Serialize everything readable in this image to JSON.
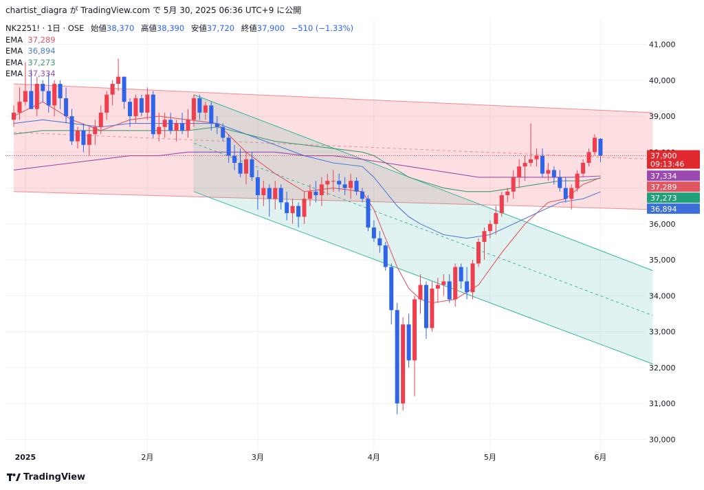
{
  "header": {
    "text": "chartist_diagra が TradingView.com で 5月 30, 2025 06:36 UTC+9 に公開"
  },
  "legend": {
    "symbol": "NK2251! · 1日 · OSE",
    "open_label": "始値",
    "open": "38,370",
    "high_label": "高値",
    "high": "38,390",
    "low_label": "安値",
    "low": "37,720",
    "close_label": "終値",
    "close": "37,900",
    "change": "−510 (−1.33%)",
    "ema": [
      {
        "label": "EMA",
        "value": "37,289",
        "color": "#e05761"
      },
      {
        "label": "EMA",
        "value": "36,894",
        "color": "#4f7bd9"
      },
      {
        "label": "EMA",
        "value": "37,273",
        "color": "#3f9a78"
      },
      {
        "label": "EMA",
        "value": "37,334",
        "color": "#9c4ab1"
      }
    ]
  },
  "footer": {
    "brand": "TradingView"
  },
  "colors": {
    "up": "#ef3f4f",
    "down": "#2f63e8",
    "grid": "#eef0f3"
  },
  "chart_data": {
    "type": "candlestick",
    "symbol": "NK2251!",
    "timeframe": "1日",
    "ylim": [
      29700,
      41700
    ],
    "y_ticks": [
      30000,
      31000,
      32000,
      33000,
      34000,
      35000,
      36000,
      37000,
      38000,
      39000,
      40000,
      41000
    ],
    "y_tick_labels": [
      "30,000",
      "31,000",
      "32,000",
      "33,000",
      "34,000",
      "35,000",
      "36,000",
      "37,000",
      "38,000",
      "39,000",
      "40,000",
      "41,000"
    ],
    "x_ticks": [
      {
        "index": 2,
        "label": "2025",
        "bold": true
      },
      {
        "index": 23,
        "label": "2月"
      },
      {
        "index": 42,
        "label": "3月"
      },
      {
        "index": 62,
        "label": "4月"
      },
      {
        "index": 82,
        "label": "5月"
      },
      {
        "index": 101,
        "label": "6月"
      }
    ],
    "candles": [
      [
        38900,
        39300,
        38700,
        39100
      ],
      [
        39100,
        39800,
        38900,
        39400
      ],
      [
        39400,
        40500,
        39300,
        39700
      ],
      [
        39700,
        40300,
        39200,
        39200
      ],
      [
        39200,
        40100,
        39000,
        39900
      ],
      [
        39900,
        40000,
        39400,
        39700
      ],
      [
        39700,
        40200,
        39100,
        39300
      ],
      [
        39300,
        40000,
        39000,
        39900
      ],
      [
        39900,
        40000,
        39200,
        39500
      ],
      [
        39500,
        39800,
        38800,
        39000
      ],
      [
        39000,
        39200,
        38200,
        38300
      ],
      [
        38300,
        38700,
        38100,
        38600
      ],
      [
        38600,
        38800,
        38000,
        38200
      ],
      [
        38200,
        38700,
        37900,
        38500
      ],
      [
        38500,
        38900,
        38200,
        38700
      ],
      [
        38700,
        39300,
        38500,
        39100
      ],
      [
        39100,
        39700,
        38900,
        39600
      ],
      [
        39600,
        40000,
        39300,
        39900
      ],
      [
        39900,
        40600,
        39700,
        40100
      ],
      [
        40100,
        40100,
        39200,
        39400
      ],
      [
        39400,
        39500,
        38700,
        39000
      ],
      [
        39000,
        39600,
        38800,
        39500
      ],
      [
        39500,
        39600,
        39000,
        39100
      ],
      [
        39100,
        39800,
        38900,
        39600
      ],
      [
        39600,
        39700,
        38400,
        38500
      ],
      [
        38500,
        39100,
        38300,
        38700
      ],
      [
        38700,
        39100,
        38400,
        38900
      ],
      [
        38900,
        39100,
        38500,
        38600
      ],
      [
        38600,
        38900,
        38300,
        38800
      ],
      [
        38800,
        39100,
        38500,
        38600
      ],
      [
        38600,
        39200,
        38400,
        38900
      ],
      [
        38900,
        39600,
        38700,
        39500
      ],
      [
        39500,
        39600,
        38900,
        39100
      ],
      [
        39100,
        39400,
        38900,
        39300
      ],
      [
        39300,
        39400,
        38600,
        38800
      ],
      [
        38800,
        39000,
        38500,
        38700
      ],
      [
        38700,
        38800,
        38300,
        38400
      ],
      [
        38400,
        38500,
        37700,
        37900
      ],
      [
        37900,
        38200,
        37500,
        37700
      ],
      [
        37700,
        38100,
        37300,
        37400
      ],
      [
        37400,
        38000,
        37100,
        37800
      ],
      [
        37800,
        38000,
        37200,
        37300
      ],
      [
        37300,
        37500,
        36400,
        36800
      ],
      [
        36800,
        37200,
        36500,
        37000
      ],
      [
        37000,
        37100,
        36200,
        36700
      ],
      [
        36700,
        37200,
        36400,
        37000
      ],
      [
        37000,
        37100,
        36400,
        36600
      ],
      [
        36600,
        36900,
        36100,
        36300
      ],
      [
        36300,
        36700,
        36000,
        36500
      ],
      [
        36500,
        36600,
        35900,
        36200
      ],
      [
        36200,
        36900,
        36000,
        36700
      ],
      [
        36700,
        37100,
        36500,
        36900
      ],
      [
        36900,
        37200,
        36600,
        36800
      ],
      [
        36800,
        37300,
        36500,
        37100
      ],
      [
        37100,
        37400,
        36800,
        37200
      ],
      [
        37200,
        37500,
        36900,
        37200
      ],
      [
        37200,
        37400,
        36900,
        37100
      ],
      [
        37100,
        37300,
        36800,
        37000
      ],
      [
        37000,
        37400,
        36700,
        37200
      ],
      [
        37200,
        37300,
        36800,
        36900
      ],
      [
        36900,
        37000,
        36600,
        36700
      ],
      [
        36700,
        36800,
        35800,
        35900
      ],
      [
        35900,
        36100,
        35500,
        35600
      ],
      [
        35600,
        35800,
        35200,
        35400
      ],
      [
        35400,
        35500,
        34700,
        34800
      ],
      [
        34800,
        34900,
        33200,
        33600
      ],
      [
        33600,
        33800,
        30700,
        31000
      ],
      [
        31000,
        33400,
        30800,
        33200
      ],
      [
        33200,
        33500,
        32000,
        32200
      ],
      [
        32200,
        34000,
        31200,
        33900
      ],
      [
        33900,
        34600,
        33500,
        34300
      ],
      [
        34300,
        34400,
        32800,
        33100
      ],
      [
        33100,
        34400,
        33000,
        34200
      ],
      [
        34200,
        34500,
        33800,
        34300
      ],
      [
        34300,
        34600,
        34000,
        34400
      ],
      [
        34400,
        34600,
        33800,
        33900
      ],
      [
        33900,
        34900,
        33700,
        34800
      ],
      [
        34800,
        34900,
        34200,
        34400
      ],
      [
        34400,
        34800,
        33900,
        34100
      ],
      [
        34100,
        35000,
        33900,
        34900
      ],
      [
        34900,
        35600,
        34800,
        35500
      ],
      [
        35500,
        35900,
        35000,
        35800
      ],
      [
        35800,
        36100,
        35600,
        36000
      ],
      [
        36000,
        36500,
        35700,
        36300
      ],
      [
        36300,
        36900,
        36200,
        36800
      ],
      [
        36800,
        37000,
        36600,
        36900
      ],
      [
        36900,
        37500,
        36700,
        37300
      ],
      [
        37300,
        37800,
        37000,
        37600
      ],
      [
        37600,
        37900,
        37200,
        37700
      ],
      [
        37700,
        38800,
        37600,
        37800
      ],
      [
        37800,
        38100,
        37600,
        37900
      ],
      [
        37900,
        38100,
        37300,
        37400
      ],
      [
        37400,
        37700,
        37200,
        37500
      ],
      [
        37500,
        37600,
        37100,
        37300
      ],
      [
        37300,
        37500,
        36900,
        37000
      ],
      [
        37000,
        37300,
        36600,
        36700
      ],
      [
        36700,
        37100,
        36400,
        37000
      ],
      [
        37000,
        37500,
        36900,
        37400
      ],
      [
        37400,
        37800,
        37300,
        37700
      ],
      [
        37700,
        38100,
        37600,
        38000
      ],
      [
        38000,
        38500,
        37900,
        38400
      ],
      [
        38370,
        38390,
        37720,
        37900
      ]
    ],
    "ema_series": [
      {
        "value": 37289,
        "color": "#e05761",
        "points": [
          [
            0,
            39000
          ],
          [
            5,
            39400
          ],
          [
            10,
            38900
          ],
          [
            15,
            38600
          ],
          [
            20,
            38900
          ],
          [
            25,
            39000
          ],
          [
            30,
            38900
          ],
          [
            35,
            38800
          ],
          [
            40,
            38000
          ],
          [
            45,
            37400
          ],
          [
            50,
            36900
          ],
          [
            55,
            37000
          ],
          [
            60,
            36900
          ],
          [
            62,
            36400
          ],
          [
            64,
            35600
          ],
          [
            66,
            34800
          ],
          [
            68,
            34200
          ],
          [
            70,
            33900
          ],
          [
            72,
            33800
          ],
          [
            76,
            33900
          ],
          [
            80,
            34300
          ],
          [
            84,
            35200
          ],
          [
            88,
            36000
          ],
          [
            92,
            36600
          ],
          [
            95,
            36700
          ],
          [
            98,
            37100
          ],
          [
            101,
            37289
          ]
        ]
      },
      {
        "value": 36894,
        "color": "#4f7bd9",
        "points": [
          [
            0,
            38800
          ],
          [
            5,
            38900
          ],
          [
            10,
            38800
          ],
          [
            15,
            38700
          ],
          [
            20,
            38800
          ],
          [
            25,
            38800
          ],
          [
            30,
            38800
          ],
          [
            35,
            38800
          ],
          [
            40,
            38500
          ],
          [
            45,
            38200
          ],
          [
            50,
            37900
          ],
          [
            55,
            37700
          ],
          [
            60,
            37600
          ],
          [
            62,
            37300
          ],
          [
            64,
            36900
          ],
          [
            66,
            36500
          ],
          [
            68,
            36200
          ],
          [
            70,
            36000
          ],
          [
            74,
            35700
          ],
          [
            78,
            35600
          ],
          [
            82,
            35700
          ],
          [
            86,
            36000
          ],
          [
            90,
            36300
          ],
          [
            94,
            36600
          ],
          [
            98,
            36700
          ],
          [
            101,
            36894
          ]
        ]
      },
      {
        "value": 37273,
        "color": "#3f9a78",
        "points": [
          [
            0,
            38500
          ],
          [
            5,
            38600
          ],
          [
            10,
            38600
          ],
          [
            15,
            38600
          ],
          [
            20,
            38600
          ],
          [
            25,
            38600
          ],
          [
            30,
            38600
          ],
          [
            35,
            38700
          ],
          [
            40,
            38500
          ],
          [
            45,
            38300
          ],
          [
            50,
            38200
          ],
          [
            55,
            38100
          ],
          [
            60,
            38000
          ],
          [
            62,
            37900
          ],
          [
            64,
            37700
          ],
          [
            66,
            37500
          ],
          [
            68,
            37300
          ],
          [
            70,
            37200
          ],
          [
            74,
            37000
          ],
          [
            78,
            36900
          ],
          [
            82,
            36900
          ],
          [
            86,
            37000
          ],
          [
            90,
            37100
          ],
          [
            94,
            37200
          ],
          [
            98,
            37200
          ],
          [
            101,
            37273
          ]
        ]
      },
      {
        "value": 37334,
        "color": "#9c4ab1",
        "points": [
          [
            0,
            37500
          ],
          [
            5,
            37600
          ],
          [
            10,
            37700
          ],
          [
            15,
            37800
          ],
          [
            20,
            37900
          ],
          [
            25,
            37900
          ],
          [
            30,
            38000
          ],
          [
            35,
            38000
          ],
          [
            40,
            38000
          ],
          [
            45,
            38000
          ],
          [
            50,
            37900
          ],
          [
            55,
            37900
          ],
          [
            60,
            37800
          ],
          [
            64,
            37700
          ],
          [
            68,
            37600
          ],
          [
            72,
            37500
          ],
          [
            76,
            37400
          ],
          [
            80,
            37300
          ],
          [
            84,
            37300
          ],
          [
            88,
            37300
          ],
          [
            92,
            37300
          ],
          [
            96,
            37300
          ],
          [
            101,
            37334
          ]
        ]
      }
    ],
    "channels": [
      {
        "name": "",
        "fill": "rgba(242,54,69,0.16)",
        "line": "#f0898f",
        "upper": [
          [
            0,
            39900
          ],
          [
            110,
            39100
          ]
        ],
        "lower": [
          [
            0,
            36900
          ],
          [
            110,
            36400
          ]
        ],
        "mid_dash": [
          [
            0,
            38550
          ],
          [
            110,
            37800
          ]
        ]
      },
      {
        "name": "",
        "fill": "rgba(34,171,148,0.14)",
        "line": "#35b8a0",
        "upper": [
          [
            31,
            39600
          ],
          [
            110,
            34700
          ]
        ],
        "lower": [
          [
            31,
            36900
          ],
          [
            110,
            32100
          ]
        ],
        "mid_dash": [
          [
            31,
            38250
          ],
          [
            110,
            33450
          ]
        ],
        "backfill_until_lower": true
      }
    ],
    "price_line": {
      "value": 37900,
      "color": "#e83b47"
    },
    "price_tags": [
      {
        "value": 37900,
        "label": "37,900",
        "sub": "09:13:46",
        "color": "#e0292f"
      },
      {
        "value": 37334,
        "label": "37,334",
        "color": "#9c4ab1"
      },
      {
        "value": 37289,
        "label": "37,289",
        "color": "#e05761"
      },
      {
        "value": 37273,
        "label": "37,273",
        "color": "#22a07a"
      },
      {
        "value": 36894,
        "label": "36,894",
        "color": "#3d6fd8"
      }
    ]
  }
}
